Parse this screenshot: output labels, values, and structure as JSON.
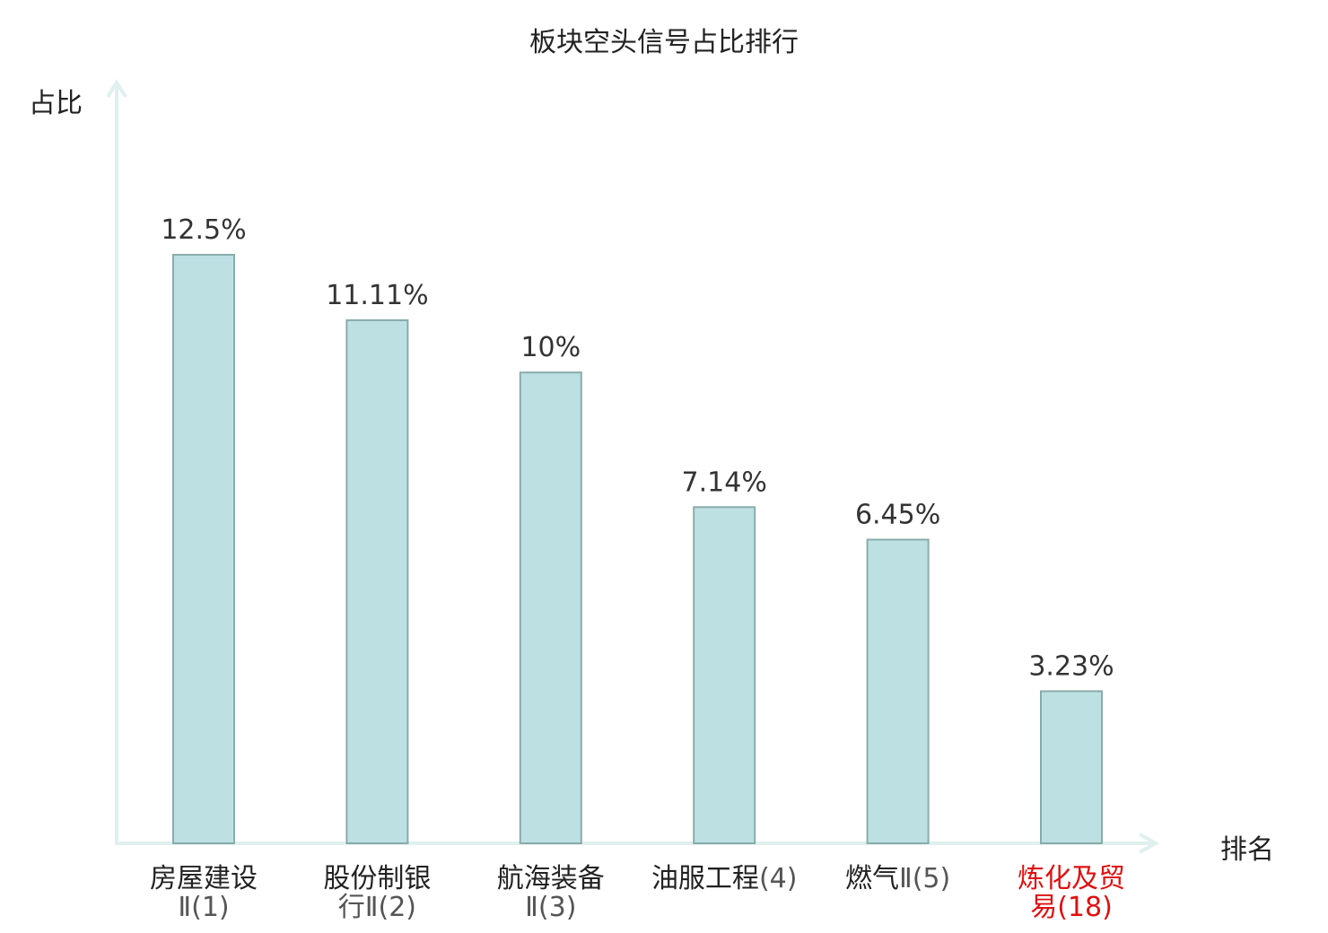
{
  "chart_data": {
    "type": "bar",
    "title": "板块空头信号占比排行",
    "ylabel": "占比",
    "xlabel": "排名",
    "categories": [
      {
        "name": "房屋建设",
        "rank_label": "Ⅱ(1)",
        "highlight": false
      },
      {
        "name": "股份制银",
        "rank_label": "行Ⅱ(2)",
        "highlight": false
      },
      {
        "name": "航海装备",
        "rank_label": "Ⅱ(3)",
        "highlight": false
      },
      {
        "name": "油服工程",
        "rank_label": "(4)",
        "highlight": false
      },
      {
        "name": "燃气",
        "rank_label": "Ⅱ(5)",
        "highlight": false
      },
      {
        "name": "炼化及贸",
        "rank_label": "易(18)",
        "highlight": true
      }
    ],
    "values": [
      12.5,
      11.11,
      10,
      7.14,
      6.45,
      3.23
    ],
    "value_labels": [
      "12.5%",
      "11.11%",
      "10%",
      "7.14%",
      "6.45%",
      "3.23%"
    ],
    "ylim": [
      0,
      15
    ],
    "grid": false,
    "colors": {
      "bar_fill": "#bde1e3",
      "bar_stroke": "#8aabab",
      "axis": "#dff0ee",
      "highlight_text": "#e01010"
    }
  }
}
